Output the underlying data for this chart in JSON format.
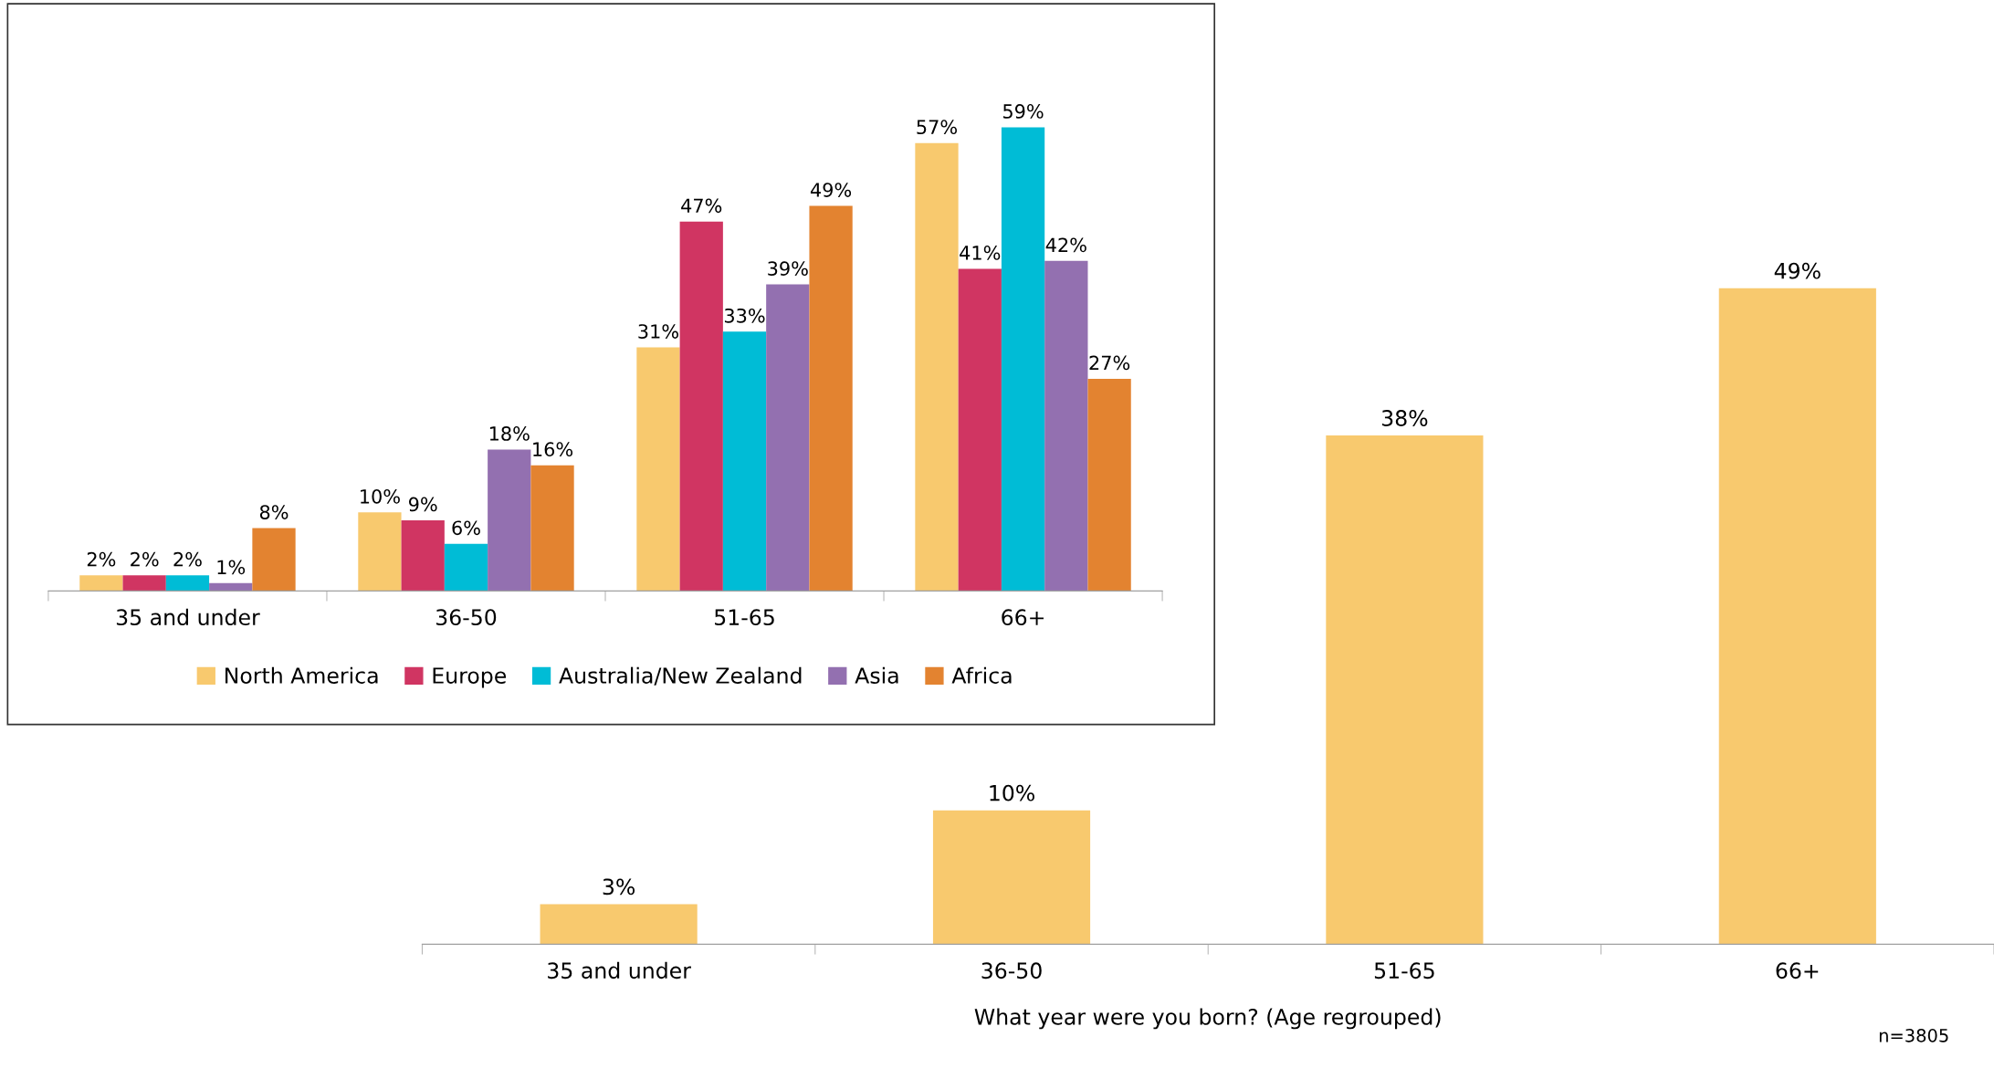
{
  "chart_data": [
    {
      "type": "bar",
      "categories": [
        "35 and under",
        "36-50",
        "51-65",
        "66+"
      ],
      "legend": "bottom",
      "grid": false,
      "series": [
        {
          "name": "North America",
          "color": "#f8c96e",
          "values": [
            2,
            10,
            31,
            57
          ],
          "value_labels": [
            "2%",
            "10%",
            "31%",
            "57%"
          ]
        },
        {
          "name": "Europe",
          "color": "#d03562",
          "values": [
            2,
            9,
            47,
            41
          ],
          "value_labels": [
            "2%",
            "9%",
            "47%",
            "41%"
          ]
        },
        {
          "name": "Australia/New Zealand",
          "color": "#00bcd6",
          "values": [
            2,
            6,
            33,
            59
          ],
          "value_labels": [
            "2%",
            "6%",
            "33%",
            "59%"
          ]
        },
        {
          "name": "Asia",
          "color": "#9370b0",
          "values": [
            1,
            18,
            39,
            42
          ],
          "value_labels": [
            "1%",
            "18%",
            "39%",
            "42%"
          ]
        },
        {
          "name": "Africa",
          "color": "#e38330",
          "values": [
            8,
            16,
            49,
            27
          ],
          "value_labels": [
            "8%",
            "16%",
            "49%",
            "27%"
          ]
        }
      ]
    },
    {
      "type": "bar",
      "categories": [
        "35 and under",
        "36-50",
        "51-65",
        "66+"
      ],
      "xlabel": "What year were you born? (Age regrouped)",
      "annotations": [
        "n=3805"
      ],
      "legend": false,
      "grid": false,
      "series": [
        {
          "color": "#f8c96e",
          "values": [
            3,
            10,
            38,
            49
          ],
          "value_labels": [
            "3%",
            "10%",
            "38%",
            "49%"
          ]
        }
      ]
    }
  ]
}
